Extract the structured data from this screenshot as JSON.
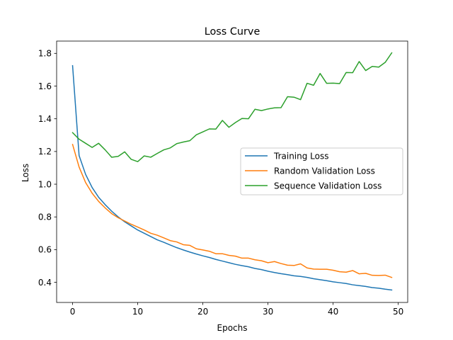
{
  "chart_data": {
    "type": "line",
    "title": "Loss Curve",
    "xlabel": "Epochs",
    "ylabel": "Loss",
    "xlim": [
      -2.45,
      51.45
    ],
    "ylim": [
      0.277,
      1.875
    ],
    "xticks": [
      0,
      10,
      20,
      30,
      40,
      50
    ],
    "yticks": [
      0.4,
      0.6,
      0.8,
      1.0,
      1.2,
      1.4,
      1.6,
      1.8
    ],
    "ytick_labels": [
      "0.4",
      "0.6",
      "0.8",
      "1.0",
      "1.2",
      "1.4",
      "1.6",
      "1.8"
    ],
    "grid": false,
    "legend_position": "center-right",
    "x": [
      0,
      1,
      2,
      3,
      4,
      5,
      6,
      7,
      8,
      9,
      10,
      11,
      12,
      13,
      14,
      15,
      16,
      17,
      18,
      19,
      20,
      21,
      22,
      23,
      24,
      25,
      26,
      27,
      28,
      29,
      30,
      31,
      32,
      33,
      34,
      35,
      36,
      37,
      38,
      39,
      40,
      41,
      42,
      43,
      44,
      45,
      46,
      47,
      48,
      49
    ],
    "series": [
      {
        "name": "Training Loss",
        "color": "#1f77b4",
        "values": [
          1.725,
          1.175,
          1.06,
          0.98,
          0.92,
          0.875,
          0.835,
          0.8,
          0.77,
          0.745,
          0.72,
          0.7,
          0.68,
          0.66,
          0.645,
          0.628,
          0.612,
          0.598,
          0.585,
          0.573,
          0.562,
          0.552,
          0.54,
          0.53,
          0.52,
          0.51,
          0.502,
          0.495,
          0.485,
          0.478,
          0.468,
          0.46,
          0.453,
          0.447,
          0.44,
          0.436,
          0.43,
          0.422,
          0.416,
          0.41,
          0.403,
          0.398,
          0.393,
          0.385,
          0.38,
          0.375,
          0.368,
          0.364,
          0.358,
          0.353
        ]
      },
      {
        "name": "Random Validation Loss",
        "color": "#ff7f0e",
        "values": [
          1.243,
          1.105,
          1.01,
          0.945,
          0.895,
          0.855,
          0.82,
          0.795,
          0.775,
          0.755,
          0.738,
          0.72,
          0.7,
          0.688,
          0.672,
          0.655,
          0.647,
          0.63,
          0.626,
          0.605,
          0.598,
          0.59,
          0.575,
          0.575,
          0.565,
          0.56,
          0.548,
          0.548,
          0.538,
          0.532,
          0.52,
          0.527,
          0.515,
          0.505,
          0.503,
          0.513,
          0.488,
          0.481,
          0.48,
          0.48,
          0.474,
          0.465,
          0.462,
          0.472,
          0.452,
          0.455,
          0.443,
          0.442,
          0.444,
          0.43
        ]
      },
      {
        "name": "Sequence Validation Loss",
        "color": "#2ca02c",
        "values": [
          1.315,
          1.275,
          1.25,
          1.225,
          1.25,
          1.21,
          1.165,
          1.17,
          1.198,
          1.152,
          1.138,
          1.173,
          1.165,
          1.188,
          1.21,
          1.222,
          1.248,
          1.258,
          1.266,
          1.302,
          1.32,
          1.338,
          1.337,
          1.39,
          1.348,
          1.377,
          1.402,
          1.4,
          1.458,
          1.45,
          1.46,
          1.467,
          1.468,
          1.535,
          1.532,
          1.517,
          1.617,
          1.605,
          1.677,
          1.617,
          1.618,
          1.615,
          1.683,
          1.682,
          1.75,
          1.695,
          1.72,
          1.716,
          1.745,
          1.803
        ]
      }
    ]
  }
}
